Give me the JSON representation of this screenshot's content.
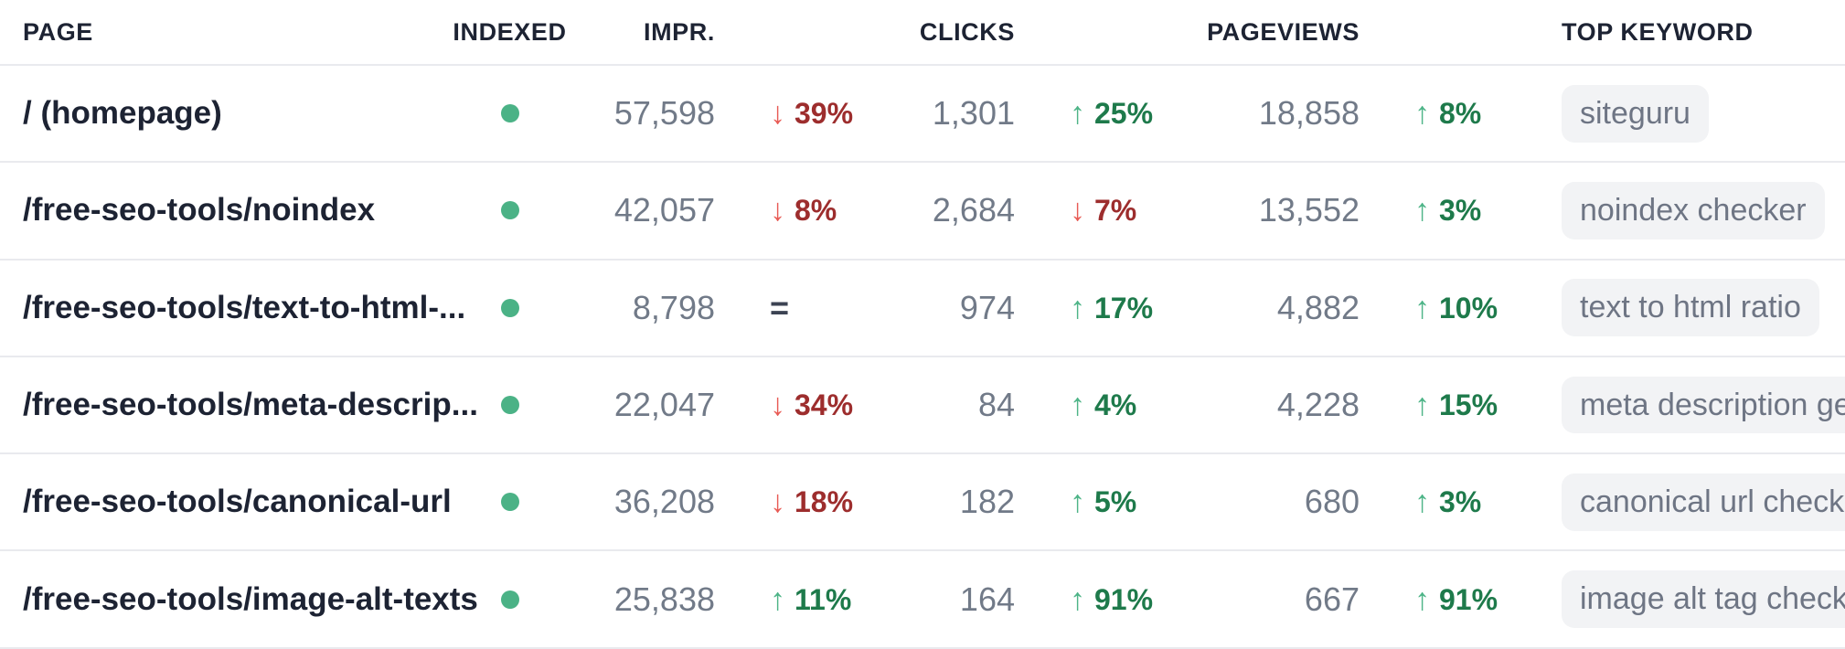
{
  "table": {
    "headers": {
      "page": "PAGE",
      "indexed": "INDEXED",
      "impressions": "IMPR.",
      "clicks": "CLICKS",
      "pageviews": "PAGEVIEWS",
      "top_keyword": "TOP KEYWORD"
    },
    "rows": [
      {
        "page": "/ (homepage)",
        "indexed": "indexed",
        "impressions": "57,598",
        "impressions_trend": {
          "dir": "down",
          "pct": "39%"
        },
        "clicks": "1,301",
        "clicks_trend": {
          "dir": "up",
          "pct": "25%"
        },
        "pageviews": "18,858",
        "pageviews_trend": {
          "dir": "up",
          "pct": "8%"
        },
        "top_keyword": "siteguru"
      },
      {
        "page": "/free-seo-tools/noindex",
        "indexed": "indexed",
        "impressions": "42,057",
        "impressions_trend": {
          "dir": "down",
          "pct": "8%"
        },
        "clicks": "2,684",
        "clicks_trend": {
          "dir": "down",
          "pct": "7%"
        },
        "pageviews": "13,552",
        "pageviews_trend": {
          "dir": "up",
          "pct": "3%"
        },
        "top_keyword": "noindex checker"
      },
      {
        "page": "/free-seo-tools/text-to-html-...",
        "indexed": "indexed",
        "impressions": "8,798",
        "impressions_trend": {
          "dir": "flat",
          "pct": ""
        },
        "clicks": "974",
        "clicks_trend": {
          "dir": "up",
          "pct": "17%"
        },
        "pageviews": "4,882",
        "pageviews_trend": {
          "dir": "up",
          "pct": "10%"
        },
        "top_keyword": "text to html ratio"
      },
      {
        "page": "/free-seo-tools/meta-descrip...",
        "indexed": "indexed",
        "impressions": "22,047",
        "impressions_trend": {
          "dir": "down",
          "pct": "34%"
        },
        "clicks": "84",
        "clicks_trend": {
          "dir": "up",
          "pct": "4%"
        },
        "pageviews": "4,228",
        "pageviews_trend": {
          "dir": "up",
          "pct": "15%"
        },
        "top_keyword": "meta description generator"
      },
      {
        "page": "/free-seo-tools/canonical-url",
        "indexed": "indexed",
        "impressions": "36,208",
        "impressions_trend": {
          "dir": "down",
          "pct": "18%"
        },
        "clicks": "182",
        "clicks_trend": {
          "dir": "up",
          "pct": "5%"
        },
        "pageviews": "680",
        "pageviews_trend": {
          "dir": "up",
          "pct": "3%"
        },
        "top_keyword": "canonical url checker"
      },
      {
        "page": "/free-seo-tools/image-alt-texts",
        "indexed": "indexed",
        "impressions": "25,838",
        "impressions_trend": {
          "dir": "up",
          "pct": "11%"
        },
        "clicks": "164",
        "clicks_trend": {
          "dir": "up",
          "pct": "91%"
        },
        "pageviews": "667",
        "pageviews_trend": {
          "dir": "up",
          "pct": "91%"
        },
        "top_keyword": "image alt tag checker"
      }
    ]
  },
  "icons": {
    "up_arrow": "↑",
    "down_arrow": "↓",
    "flat": "="
  },
  "colors": {
    "positive": "#1e7a4b",
    "positive_arrow": "#4db487",
    "negative": "#9d2d2d",
    "negative_arrow": "#e85b55",
    "neutral": "#3c4353",
    "indexed_dot": "#4bb286",
    "number_text": "#717a88",
    "page_text": "#1d2333",
    "header_text": "#1d2333",
    "pill_bg": "#f2f3f5",
    "pill_text": "#6e7584",
    "divider": "#e9eaee"
  }
}
